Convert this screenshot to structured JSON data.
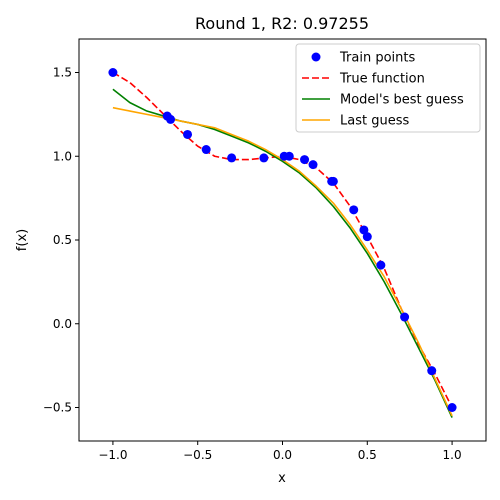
{
  "chart_data": {
    "type": "line",
    "title": "Round 1, R2: 0.97255",
    "xlabel": "x",
    "ylabel": "f(x)",
    "xlim": [
      -1.2,
      1.2
    ],
    "ylim": [
      -0.7,
      1.7
    ],
    "xticks": [
      -1.0,
      -0.5,
      0.0,
      0.5,
      1.0
    ],
    "xtick_labels": [
      "−1.0",
      "−0.5",
      "0.0",
      "0.5",
      "1.0"
    ],
    "yticks": [
      -0.5,
      0.0,
      0.5,
      1.0,
      1.5
    ],
    "ytick_labels": [
      "−0.5",
      "0.0",
      "0.5",
      "1.0",
      "1.5"
    ],
    "grid": false,
    "legend_position": "top-right",
    "series": [
      {
        "name": "Train points",
        "kind": "scatter",
        "color": "#0000ff",
        "x": [
          -1.0,
          -0.68,
          -0.66,
          -0.56,
          -0.45,
          -0.3,
          -0.11,
          0.01,
          0.04,
          0.13,
          0.18,
          0.29,
          0.3,
          0.42,
          0.48,
          0.5,
          0.58,
          0.72,
          0.88,
          1.0
        ],
        "y": [
          1.5,
          1.24,
          1.22,
          1.13,
          1.04,
          0.99,
          0.99,
          1.0,
          1.0,
          0.98,
          0.95,
          0.85,
          0.85,
          0.68,
          0.56,
          0.52,
          0.35,
          0.04,
          -0.28,
          -0.5
        ]
      },
      {
        "name": "True function",
        "kind": "line",
        "style": "dashed",
        "color": "#ff0000",
        "x": [
          -1.0,
          -0.9,
          -0.8,
          -0.7,
          -0.6,
          -0.5,
          -0.4,
          -0.3,
          -0.2,
          -0.1,
          0.0,
          0.1,
          0.2,
          0.3,
          0.4,
          0.5,
          0.6,
          0.7,
          0.8,
          0.9,
          1.0
        ],
        "y": [
          1.5,
          1.44,
          1.35,
          1.25,
          1.15,
          1.06,
          1.0,
          0.98,
          0.98,
          0.99,
          1.0,
          0.98,
          0.93,
          0.84,
          0.7,
          0.52,
          0.33,
          0.09,
          -0.12,
          -0.3,
          -0.5
        ]
      },
      {
        "name": "Model's best guess",
        "kind": "line",
        "style": "solid",
        "color": "#008000",
        "x": [
          -1.0,
          -0.9,
          -0.8,
          -0.7,
          -0.6,
          -0.5,
          -0.4,
          -0.3,
          -0.2,
          -0.1,
          0.0,
          0.1,
          0.2,
          0.3,
          0.4,
          0.5,
          0.6,
          0.7,
          0.8,
          0.9,
          1.0
        ],
        "y": [
          1.4,
          1.32,
          1.27,
          1.24,
          1.21,
          1.19,
          1.16,
          1.12,
          1.08,
          1.03,
          0.97,
          0.9,
          0.81,
          0.7,
          0.57,
          0.42,
          0.25,
          0.06,
          -0.14,
          -0.34,
          -0.56
        ]
      },
      {
        "name": "Last guess",
        "kind": "line",
        "style": "solid",
        "color": "#ffa500",
        "x": [
          -1.0,
          -0.9,
          -0.8,
          -0.7,
          -0.6,
          -0.5,
          -0.4,
          -0.3,
          -0.2,
          -0.1,
          0.0,
          0.1,
          0.2,
          0.3,
          0.4,
          0.5,
          0.6,
          0.7,
          0.8,
          0.9,
          1.0
        ],
        "y": [
          1.29,
          1.27,
          1.25,
          1.23,
          1.21,
          1.19,
          1.17,
          1.13,
          1.09,
          1.04,
          0.98,
          0.91,
          0.82,
          0.72,
          0.59,
          0.44,
          0.28,
          0.09,
          -0.11,
          -0.33,
          -0.55
        ]
      }
    ]
  }
}
